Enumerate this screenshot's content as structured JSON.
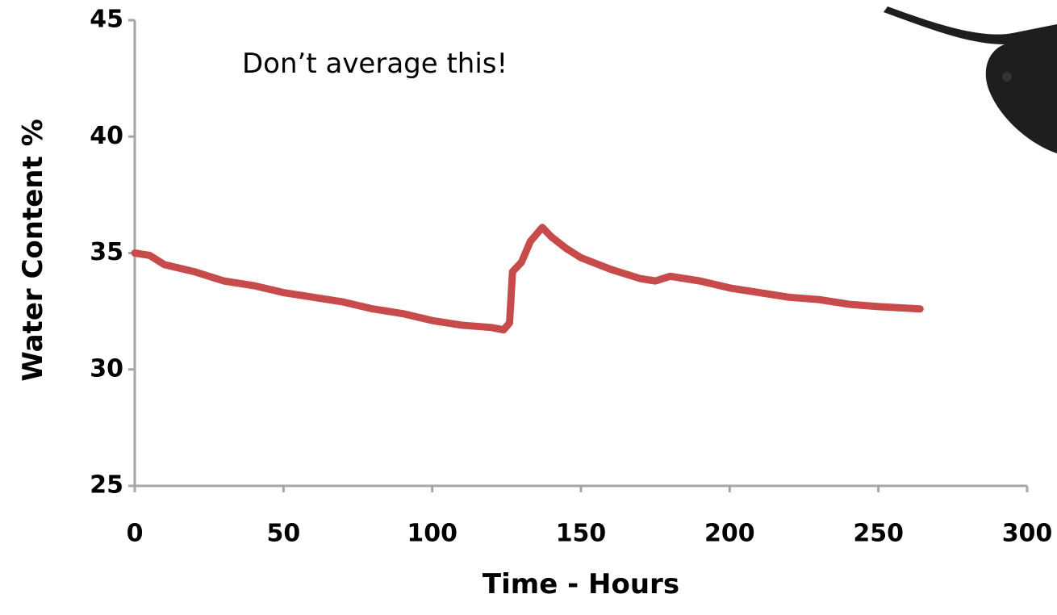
{
  "chart_data": {
    "type": "line",
    "annotation": "Don’t average this!",
    "x_label": "Time - Hours",
    "y_label": "Water Content %",
    "x": [
      0,
      5,
      10,
      20,
      30,
      40,
      50,
      60,
      70,
      80,
      90,
      100,
      110,
      120,
      124,
      126,
      127,
      130,
      133,
      137,
      140,
      145,
      150,
      160,
      170,
      175,
      180,
      190,
      200,
      210,
      220,
      230,
      240,
      250,
      264
    ],
    "series": [
      {
        "color": "#c84b4b",
        "values": [
          35.0,
          34.9,
          34.5,
          34.2,
          33.8,
          33.6,
          33.3,
          33.1,
          32.9,
          32.6,
          32.4,
          32.1,
          31.9,
          31.8,
          31.7,
          32.0,
          34.2,
          34.6,
          35.5,
          36.1,
          35.7,
          35.2,
          34.8,
          34.3,
          33.9,
          33.8,
          34.0,
          33.8,
          33.5,
          33.3,
          33.1,
          33.0,
          32.8,
          32.7,
          32.6
        ]
      }
    ],
    "xlim": [
      0,
      300
    ],
    "xticks": [
      0,
      50,
      100,
      150,
      200,
      250,
      300
    ],
    "ylim": [
      25,
      45
    ],
    "yticks": [
      25,
      30,
      35,
      40,
      45
    ],
    "axis_color": "#a6a6a6"
  }
}
